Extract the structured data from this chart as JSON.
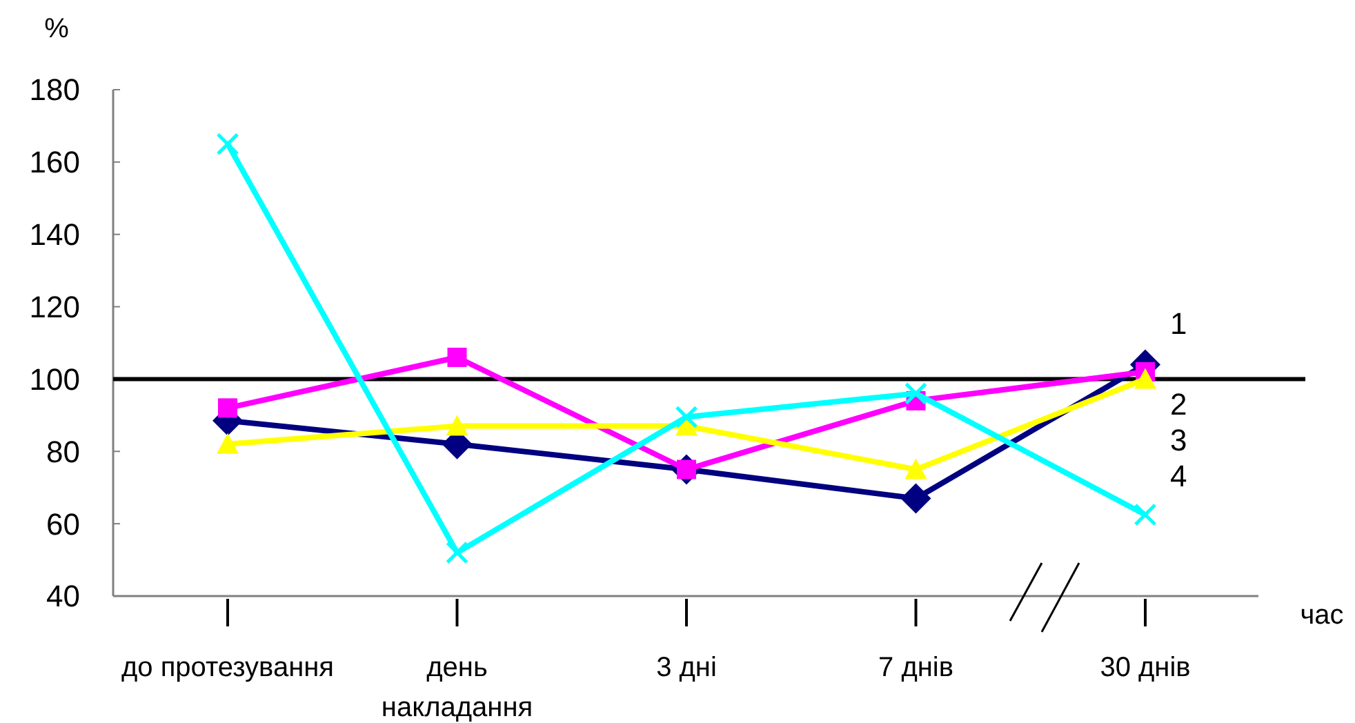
{
  "chart_data": {
    "type": "line",
    "ylabel": "%",
    "xlabel": "час",
    "categories": [
      "до протезування",
      "день\nнакладання",
      "3 дні",
      "7 днів",
      "30 днів"
    ],
    "ylim": [
      40,
      180
    ],
    "yticks": [
      40,
      60,
      80,
      100,
      120,
      140,
      160,
      180
    ],
    "grid": false,
    "legend": false,
    "line_style": "solid",
    "series": [
      {
        "name": "1",
        "color": "#000080",
        "marker": "diamond",
        "values": [
          88.5,
          82,
          75,
          67,
          104
        ]
      },
      {
        "name": "2",
        "color": "#ff00ff",
        "marker": "square",
        "values": [
          92,
          106,
          75,
          94,
          102
        ]
      },
      {
        "name": "3",
        "color": "#ffff00",
        "marker": "triangle",
        "values": [
          82,
          87,
          87,
          75,
          100
        ]
      },
      {
        "name": "4",
        "color": "#00ffff",
        "marker": "cross",
        "values": [
          165,
          52,
          89.5,
          96,
          62.5
        ]
      }
    ],
    "ref_lines": [
      {
        "axis": "y",
        "value": 100,
        "color": "#000000",
        "line_style": "solid"
      }
    ]
  }
}
